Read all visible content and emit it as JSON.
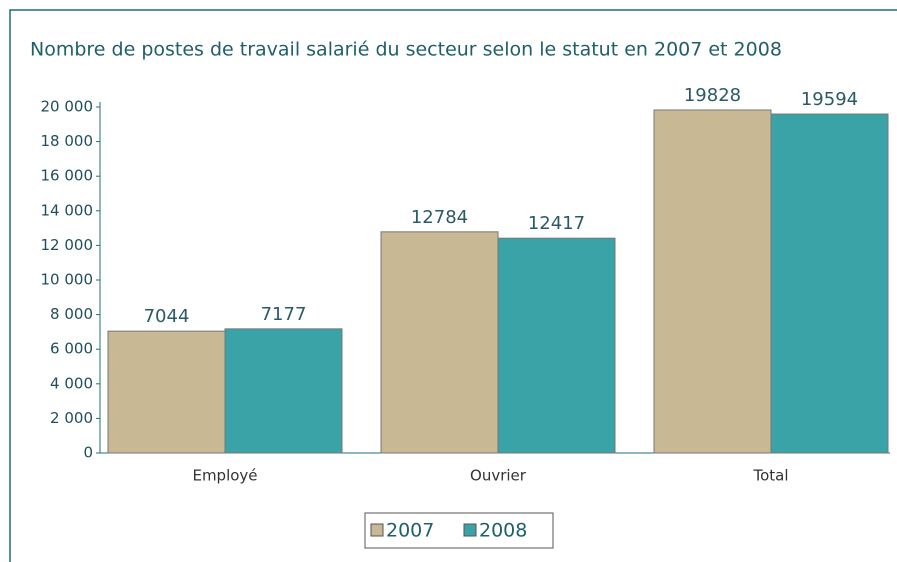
{
  "chart_data": {
    "type": "bar",
    "title": "Nombre de postes de travail salarié du secteur selon le statut en 2007 et 2008",
    "categories": [
      "Employé",
      "Ouvrier",
      "Total"
    ],
    "series": [
      {
        "name": "2007",
        "color": "#c8b894",
        "values": [
          7044,
          12784,
          19828
        ]
      },
      {
        "name": "2008",
        "color": "#3aa3a8",
        "values": [
          7177,
          12417,
          19594
        ]
      }
    ],
    "ylim": [
      0,
      20000
    ],
    "yticks": [
      0,
      {
        "value": 2000,
        "label": "2 000"
      },
      {
        "value": 4000,
        "label": "4 000"
      },
      {
        "value": 6000,
        "label": "6 000"
      },
      {
        "value": 8000,
        "label": "8 000"
      },
      {
        "value": 10000,
        "label": "10 000"
      },
      {
        "value": 12000,
        "label": "12 000"
      },
      {
        "value": 14000,
        "label": "14 000"
      },
      {
        "value": 16000,
        "label": "16 000"
      },
      {
        "value": 18000,
        "label": "18 000"
      },
      {
        "value": 20000,
        "label": "20 000"
      }
    ],
    "legend": "bottom"
  }
}
